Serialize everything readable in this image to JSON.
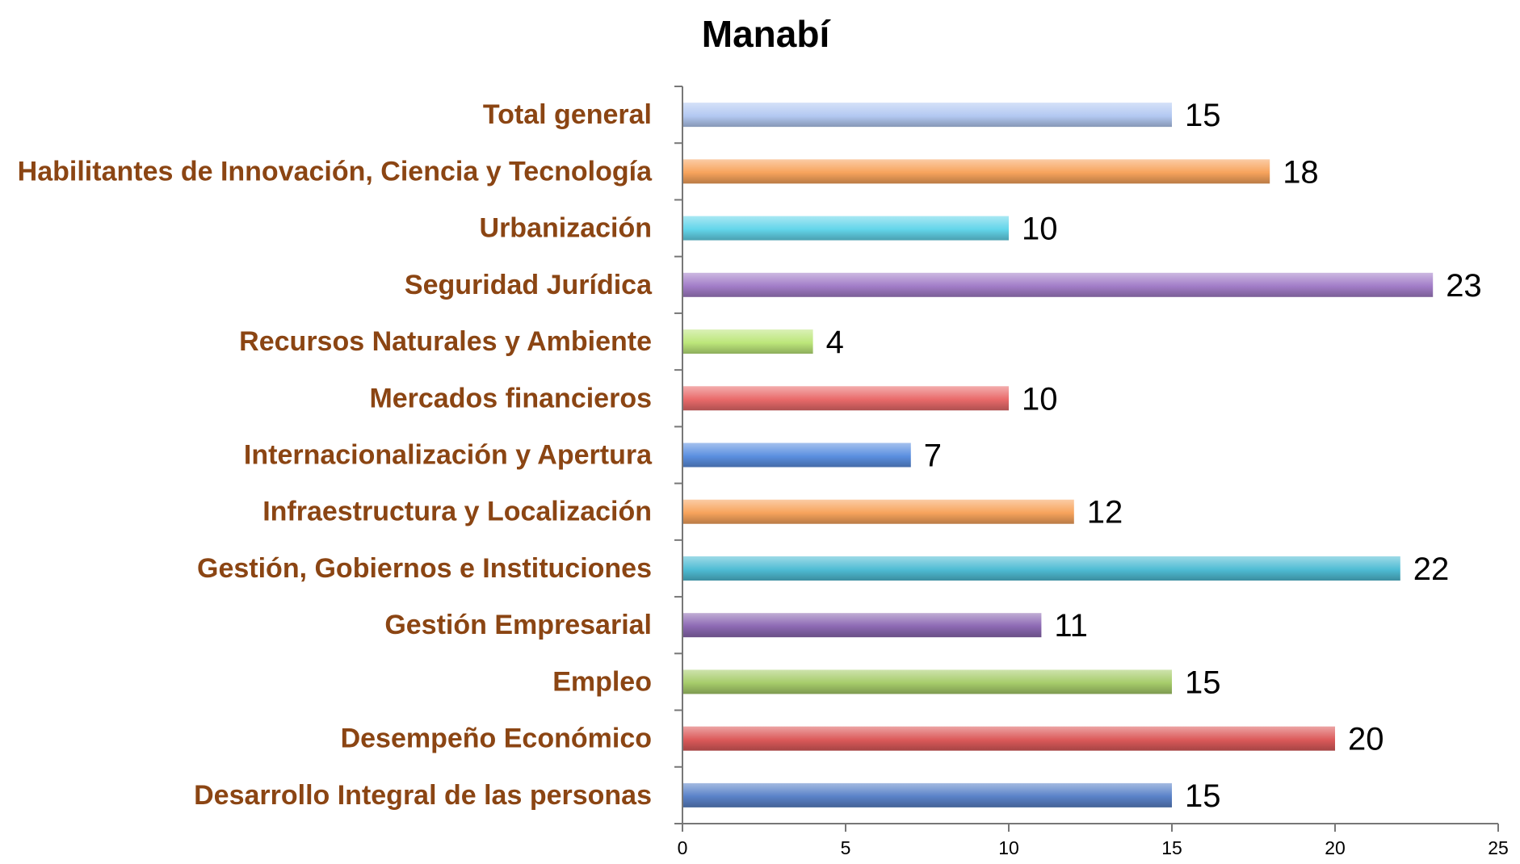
{
  "chart_data": {
    "type": "bar",
    "orientation": "horizontal",
    "title": "Manabí",
    "xlabel": "",
    "ylabel": "",
    "xlim": [
      0,
      25
    ],
    "xticks": [
      0,
      5,
      10,
      15,
      20,
      25
    ],
    "grid": false,
    "legend": "none",
    "categories": [
      "Total general",
      "Habilitantes de Innovación, Ciencia y Tecnología",
      "Urbanización",
      "Seguridad Jurídica",
      "Recursos Naturales y Ambiente",
      "Mercados financieros",
      "Internacionalización y Apertura",
      "Infraestructura y Localización",
      "Gestión, Gobiernos e Instituciones",
      "Gestión Empresarial",
      "Empleo",
      "Desempeño Económico",
      "Desarrollo Integral de las personas"
    ],
    "values": [
      15,
      18,
      10,
      23,
      4,
      10,
      7,
      12,
      22,
      11,
      15,
      20,
      15
    ],
    "colors": [
      "#b3c9f2",
      "#f7a35c",
      "#63d5ea",
      "#a27dc8",
      "#bce67a",
      "#e96a6a",
      "#5b8fe0",
      "#f7a35c",
      "#4fbcd4",
      "#8c69b3",
      "#a6cc6a",
      "#dc5a5a",
      "#5a82c8"
    ],
    "label_color": "#8B4513"
  }
}
